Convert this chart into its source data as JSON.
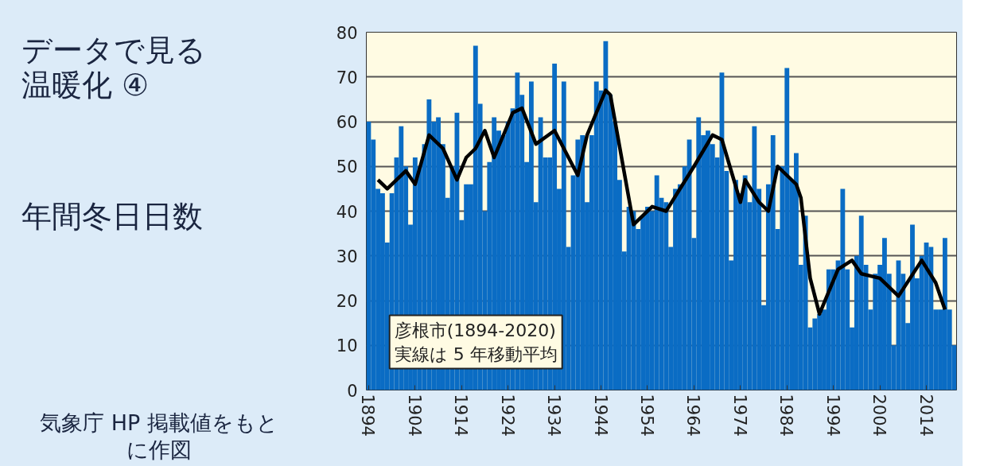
{
  "chart_data": {
    "type": "bar",
    "title": "データで見る温暖化 ④",
    "ylabel": "年間冬日日数",
    "annotations": [
      "彦根市(1894-2020)\n実線は 5 年移動平均",
      "気象庁 HP 掲載値をもとに作図"
    ],
    "x": [
      1894,
      1895,
      1896,
      1897,
      1898,
      1899,
      1900,
      1901,
      1902,
      1903,
      1904,
      1905,
      1906,
      1907,
      1908,
      1909,
      1910,
      1911,
      1912,
      1913,
      1914,
      1915,
      1916,
      1917,
      1918,
      1919,
      1920,
      1921,
      1922,
      1923,
      1924,
      1925,
      1926,
      1927,
      1928,
      1929,
      1930,
      1931,
      1932,
      1933,
      1934,
      1935,
      1936,
      1937,
      1938,
      1939,
      1940,
      1941,
      1942,
      1943,
      1944,
      1945,
      1946,
      1947,
      1948,
      1949,
      1950,
      1951,
      1952,
      1953,
      1954,
      1955,
      1956,
      1957,
      1958,
      1959,
      1960,
      1961,
      1962,
      1963,
      1964,
      1965,
      1966,
      1967,
      1968,
      1969,
      1970,
      1971,
      1972,
      1973,
      1974,
      1975,
      1976,
      1977,
      1978,
      1979,
      1980,
      1981,
      1982,
      1983,
      1984,
      1985,
      1986,
      1987,
      1988,
      1989,
      1990,
      1991,
      1992,
      1993,
      1994,
      1995,
      1996,
      1997,
      1998,
      1999,
      2000,
      2001,
      2002,
      2003,
      2004,
      2005,
      2006,
      2007,
      2008,
      2009,
      2010,
      2011,
      2012,
      2013,
      2014,
      2015,
      2016,
      2017,
      2018,
      2019,
      2020
    ],
    "series": [
      {
        "color": "#0a6cc4",
        "values": [
          60,
          56,
          45,
          44,
          33,
          44,
          52,
          59,
          50,
          37,
          52,
          50,
          55,
          65,
          60,
          61,
          55,
          43,
          50,
          62,
          38,
          46,
          46,
          77,
          64,
          40,
          51,
          61,
          58,
          57,
          60,
          63,
          71,
          66,
          51,
          69,
          42,
          61,
          52,
          52,
          73,
          45,
          69,
          32,
          48,
          56,
          57,
          42,
          57,
          69,
          67,
          78,
          66,
          60,
          47,
          31,
          41,
          40,
          36,
          39,
          41,
          40,
          48,
          43,
          42,
          32,
          45,
          46,
          50,
          56,
          34,
          61,
          57,
          58,
          55,
          52,
          71,
          49,
          29,
          47,
          44,
          48,
          42,
          59,
          45,
          19,
          46,
          57,
          36,
          50,
          72,
          47,
          53,
          28,
          39,
          14,
          16,
          17,
          18,
          27,
          27,
          29,
          45,
          27,
          14,
          30,
          39,
          28,
          18,
          26,
          28,
          34,
          26,
          10,
          29,
          26,
          15,
          37,
          25,
          30,
          33,
          32,
          18,
          18,
          34,
          18,
          10
        ]
      },
      {
        "type": "line",
        "color": "#000000",
        "x": [
          1896,
          1898,
          1902,
          1904,
          1907,
          1910,
          1913,
          1915,
          1917,
          1919,
          1921,
          1925,
          1927,
          1930,
          1934,
          1939,
          1941,
          1945,
          1946,
          1951,
          1955,
          1958,
          1964,
          1968,
          1970,
          1974,
          1975,
          1978,
          1980,
          1982,
          1986,
          1987,
          1989,
          1991,
          1995,
          1998,
          2000,
          2004,
          2008,
          2013,
          2016,
          2018
        ],
        "values": [
          47,
          45,
          49,
          46,
          57,
          54,
          47,
          52,
          54,
          58,
          52,
          62,
          63,
          55,
          58,
          48,
          57,
          67,
          66,
          37,
          41,
          40,
          50,
          57,
          56,
          42,
          47,
          42,
          40,
          50,
          46,
          43,
          25,
          17,
          27,
          29,
          26,
          25,
          21,
          29,
          24,
          18
        ]
      }
    ],
    "xlim": [
      1893.5,
      2020.5
    ],
    "xticks": [
      1894,
      1904,
      1914,
      1924,
      1934,
      1944,
      1954,
      1964,
      1974,
      1984,
      1994,
      2004,
      2014
    ],
    "ylim": [
      0,
      80
    ],
    "yticks": [
      0,
      10,
      20,
      30,
      40,
      50,
      60,
      70,
      80
    ],
    "grid": "y"
  }
}
